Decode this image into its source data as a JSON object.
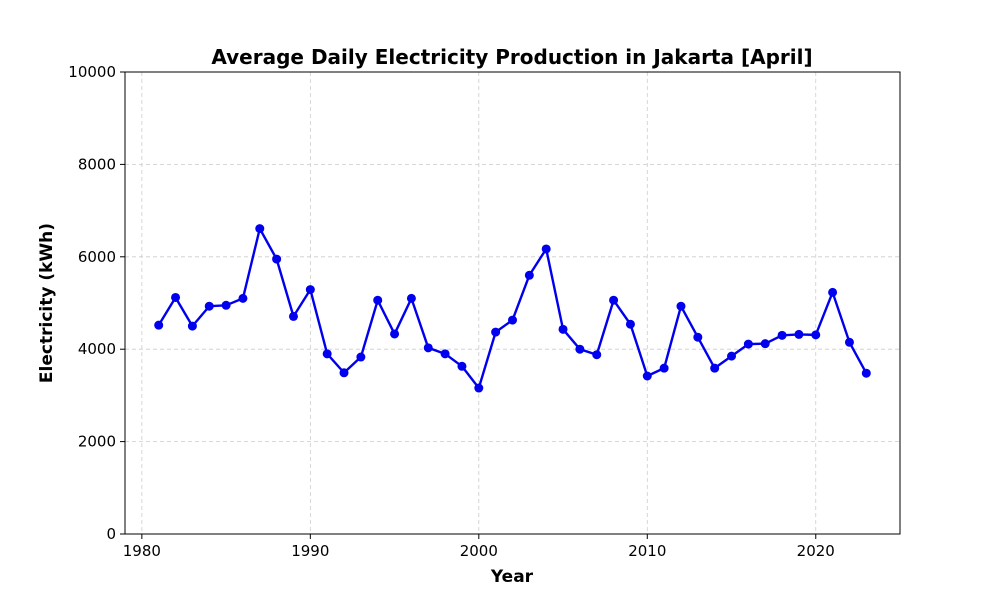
{
  "chart_data": {
    "type": "line",
    "title": "Average Daily Electricity Production in Jakarta [April]",
    "xlabel": "Year",
    "ylabel": "Electricity (kWh)",
    "xlim": [
      1979,
      2025
    ],
    "ylim": [
      0,
      10000
    ],
    "xticks": [
      1980,
      1990,
      2000,
      2010,
      2020
    ],
    "yticks": [
      0,
      2000,
      4000,
      6000,
      8000,
      10000
    ],
    "grid": true,
    "series": [
      {
        "color": "#0000ee",
        "x": [
          1981,
          1982,
          1983,
          1984,
          1985,
          1986,
          1987,
          1988,
          1989,
          1990,
          1991,
          1992,
          1993,
          1994,
          1995,
          1996,
          1997,
          1998,
          1999,
          2000,
          2001,
          2002,
          2003,
          2004,
          2005,
          2006,
          2007,
          2008,
          2009,
          2010,
          2011,
          2012,
          2013,
          2014,
          2015,
          2016,
          2017,
          2018,
          2019,
          2020,
          2021,
          2022,
          2023
        ],
        "y": [
          4520,
          5120,
          4500,
          4930,
          4950,
          5100,
          6610,
          5950,
          4710,
          5290,
          3900,
          3490,
          3830,
          5060,
          4330,
          5100,
          4030,
          3900,
          3630,
          3160,
          4370,
          4630,
          5600,
          6170,
          4430,
          4000,
          3880,
          5060,
          4540,
          3420,
          3590,
          4930,
          4260,
          3590,
          3850,
          4110,
          4120,
          4300,
          4320,
          4310,
          5230,
          4150,
          3480
        ]
      }
    ]
  }
}
